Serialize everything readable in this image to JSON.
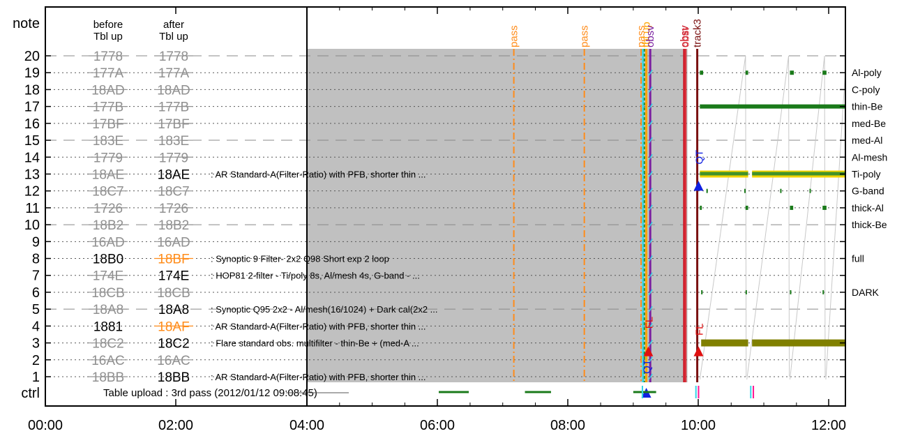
{
  "chart_data": {
    "type": "timeline",
    "x_tick_labels": [
      "00:00",
      "02:00",
      "04:00",
      "06:00",
      "08:00",
      "10:00",
      "12:00"
    ],
    "xlim_hours": [
      0,
      12.25
    ],
    "y_axis_label": "note",
    "ctrl_label": "ctrl",
    "column_headers": {
      "before": [
        "before",
        "Tbl up"
      ],
      "after": [
        "after",
        "Tbl up"
      ]
    },
    "rows": [
      {
        "n": "20",
        "before": "1778",
        "after": "1778",
        "b_state": "struck",
        "a_state": "struck",
        "line": "dashed"
      },
      {
        "n": "19",
        "before": "177A",
        "after": "177A",
        "b_state": "struck",
        "a_state": "struck",
        "line": "dotted",
        "filter": "Al-poly"
      },
      {
        "n": "18",
        "before": "18AD",
        "after": "18AD",
        "b_state": "struck",
        "a_state": "struck",
        "line": "dotted",
        "filter": "C-poly"
      },
      {
        "n": "17",
        "before": "177B",
        "after": "177B",
        "b_state": "struck",
        "a_state": "struck",
        "line": "dotted",
        "filter": "thin-Be"
      },
      {
        "n": "16",
        "before": "17BF",
        "after": "17BF",
        "b_state": "struck",
        "a_state": "struck",
        "line": "dotted",
        "filter": "med-Be"
      },
      {
        "n": "15",
        "before": "183E",
        "after": "183E",
        "b_state": "struck",
        "a_state": "struck",
        "line": "dashed",
        "filter": "med-Al"
      },
      {
        "n": "14",
        "before": "1779",
        "after": "1779",
        "b_state": "struck",
        "a_state": "struck",
        "line": "dotted",
        "filter": "Al-mesh"
      },
      {
        "n": "13",
        "before": "18AE",
        "after": "18AE",
        "b_state": "struck",
        "a_state": "active",
        "line": "dotted",
        "filter": "Ti-poly",
        "desc": ": AR Standard-A(Filter-Ratio) with PFB, shorter thin ..."
      },
      {
        "n": "12",
        "before": "18C7",
        "after": "18C7",
        "b_state": "struck",
        "a_state": "struck",
        "line": "dotted",
        "filter": "G-band"
      },
      {
        "n": "11",
        "before": "1726",
        "after": "1726",
        "b_state": "struck",
        "a_state": "struck",
        "line": "dotted",
        "filter": "thick-Al"
      },
      {
        "n": "10",
        "before": "18B2",
        "after": "18B2",
        "b_state": "struck",
        "a_state": "struck",
        "line": "dashed",
        "filter": "thick-Be"
      },
      {
        "n": "9",
        "before": "16AD",
        "after": "16AD",
        "b_state": "struck",
        "a_state": "struck",
        "line": "dotted"
      },
      {
        "n": "8",
        "before": "18B0",
        "after": "18BF",
        "b_state": "active",
        "a_state": "new",
        "line": "dotted",
        "filter": "full",
        "desc": ": Synoptic 9 Filter- 2x2 Q98 Short exp 2 loop"
      },
      {
        "n": "7",
        "before": "174E",
        "after": "174E",
        "b_state": "struck",
        "a_state": "active",
        "line": "dotted",
        "desc": ": HOP81 2-filter - Ti/poly 8s, Al/mesh 4s, G-band -  ..."
      },
      {
        "n": "6",
        "before": "18CB",
        "after": "18CB",
        "b_state": "struck",
        "a_state": "struck",
        "line": "dotted",
        "filter": "DARK"
      },
      {
        "n": "5",
        "before": "18A8",
        "after": "18A8",
        "b_state": "struck",
        "a_state": "active",
        "line": "dashed",
        "desc": ": Synoptic Q95 2x2 - Al/mesh(16/1024) + Dark cal(2x2 ..."
      },
      {
        "n": "4",
        "before": "1881",
        "after": "18AF",
        "b_state": "active",
        "a_state": "new",
        "line": "dotted",
        "desc": ": AR Standard-A(Filter-Ratio) with PFB, shorter thin ..."
      },
      {
        "n": "3",
        "before": "18C2",
        "after": "18C2",
        "b_state": "struck",
        "a_state": "active",
        "line": "dotted",
        "desc": ": Flare standard obs. multifilter - thin-Be + (med-A ..."
      },
      {
        "n": "2",
        "before": "16AC",
        "after": "16AC",
        "b_state": "struck",
        "a_state": "struck",
        "line": "dotted"
      },
      {
        "n": "1",
        "before": "18BB",
        "after": "18BB",
        "b_state": "struck",
        "a_state": "active",
        "line": "dotted",
        "desc": ": AR Standard-A(Filter-Ratio) with PFB, shorter thin ..."
      }
    ],
    "ctrl_text": "Table upload : 3rd pass (2012/01/12 09:08:45)",
    "shaded_region": {
      "x0": 4.0,
      "x1": 9.83,
      "color": "#c0c0c0"
    },
    "event_lines": [
      {
        "label": "pass",
        "x": 7.17,
        "color": "#ff8c1a",
        "style": "dashdot"
      },
      {
        "label": "pass",
        "x": 8.25,
        "color": "#ff8c1a",
        "style": "dashdot"
      },
      {
        "label": "pass",
        "x": 9.12,
        "color": "#ff8c1a",
        "style": "dashdot"
      },
      {
        "label": "",
        "x": 9.15,
        "color": "#33d6e6",
        "style": "solid"
      },
      {
        "label": "",
        "x": 9.17,
        "color": "#2e8b2e",
        "style": "dashed"
      },
      {
        "label": "tbl up",
        "x": 9.2,
        "color": "#ffa500",
        "style": "solid"
      },
      {
        "label": "obsv",
        "x": 9.26,
        "color": "#7a1fa0",
        "style": "solid"
      },
      {
        "label": "obsv",
        "x": 9.78,
        "color": "#cc1020",
        "style": "solid"
      },
      {
        "label": "obst",
        "x": 9.8,
        "color": "#d8323c",
        "style": "solid"
      },
      {
        "label": "track3",
        "x": 9.98,
        "color": "#7a1010",
        "style": "solid"
      }
    ],
    "markers": [
      {
        "label": "FL",
        "x": 9.23,
        "note": 4.2,
        "color": "#e01010",
        "shape": "triangle",
        "tri_note": 2.5
      },
      {
        "label": "QT",
        "x": 9.2,
        "note": 1.6,
        "color": "#1020e0",
        "shape": "triangle",
        "tri_note": "ctrl"
      },
      {
        "label": "QT",
        "x": 10.0,
        "note": 14.0,
        "color": "#1020e0",
        "shape": "triangle",
        "tri_note": 12.3
      },
      {
        "label": "FL",
        "x": 10.0,
        "note": 3.8,
        "color": "#e01010",
        "shape": "triangle",
        "tri_note": 2.5
      }
    ],
    "filter_usage": [
      {
        "filter": "Al-poly",
        "note": 19,
        "segments": [
          [
            10.02,
            10.07
          ],
          [
            10.72,
            10.76
          ],
          [
            11.4,
            11.46
          ],
          [
            11.9,
            11.96
          ]
        ]
      },
      {
        "filter": "thin-Be",
        "note": 17,
        "segments": [
          [
            10.02,
            12.25
          ]
        ]
      },
      {
        "filter": "Ti-poly",
        "note": 13,
        "segments": [
          [
            10.02,
            10.76
          ],
          [
            10.82,
            12.25
          ]
        ],
        "color": "#f0d000"
      },
      {
        "filter": "G-band",
        "note": 12,
        "segments": [
          [
            10.12,
            10.13
          ],
          [
            10.7,
            10.71
          ],
          [
            11.25,
            11.26
          ],
          [
            11.7,
            11.71
          ]
        ]
      },
      {
        "filter": "thick-Al",
        "note": 11,
        "segments": [
          [
            10.02,
            10.05
          ],
          [
            10.72,
            10.76
          ],
          [
            11.4,
            11.45
          ],
          [
            11.9,
            11.96
          ]
        ]
      },
      {
        "filter": "DARK",
        "note": 6,
        "segments": [
          [
            10.04,
            10.05
          ],
          [
            10.72,
            10.73
          ],
          [
            11.4,
            11.41
          ],
          [
            11.9,
            11.91
          ]
        ]
      },
      {
        "filter": "flare",
        "note": 3,
        "segments": [
          [
            10.04,
            10.76
          ],
          [
            10.82,
            12.25
          ]
        ],
        "color": "#808000"
      }
    ],
    "ctrl_segments": [
      {
        "x0": 6.02,
        "x1": 6.48,
        "color": "#1a7a1a"
      },
      {
        "x0": 7.34,
        "x1": 7.74,
        "color": "#1a7a1a"
      },
      {
        "x0": 9.0,
        "x1": 9.35,
        "color": "#1a7a1a"
      }
    ],
    "ctrl_ticks": [
      {
        "x": 9.14,
        "color": "#33d6e6"
      },
      {
        "x": 9.96,
        "color": "#33d6e6"
      },
      {
        "x": 10.0,
        "color": "#ff1493"
      },
      {
        "x": 10.8,
        "color": "#33d6e6"
      },
      {
        "x": 10.84,
        "color": "#ff1493"
      }
    ],
    "colors": {
      "struck": "#909090",
      "active": "#000000",
      "new": "#ff8c1a",
      "usage": "#1a7a1a",
      "sawtooth": "#c8c8c8"
    }
  }
}
